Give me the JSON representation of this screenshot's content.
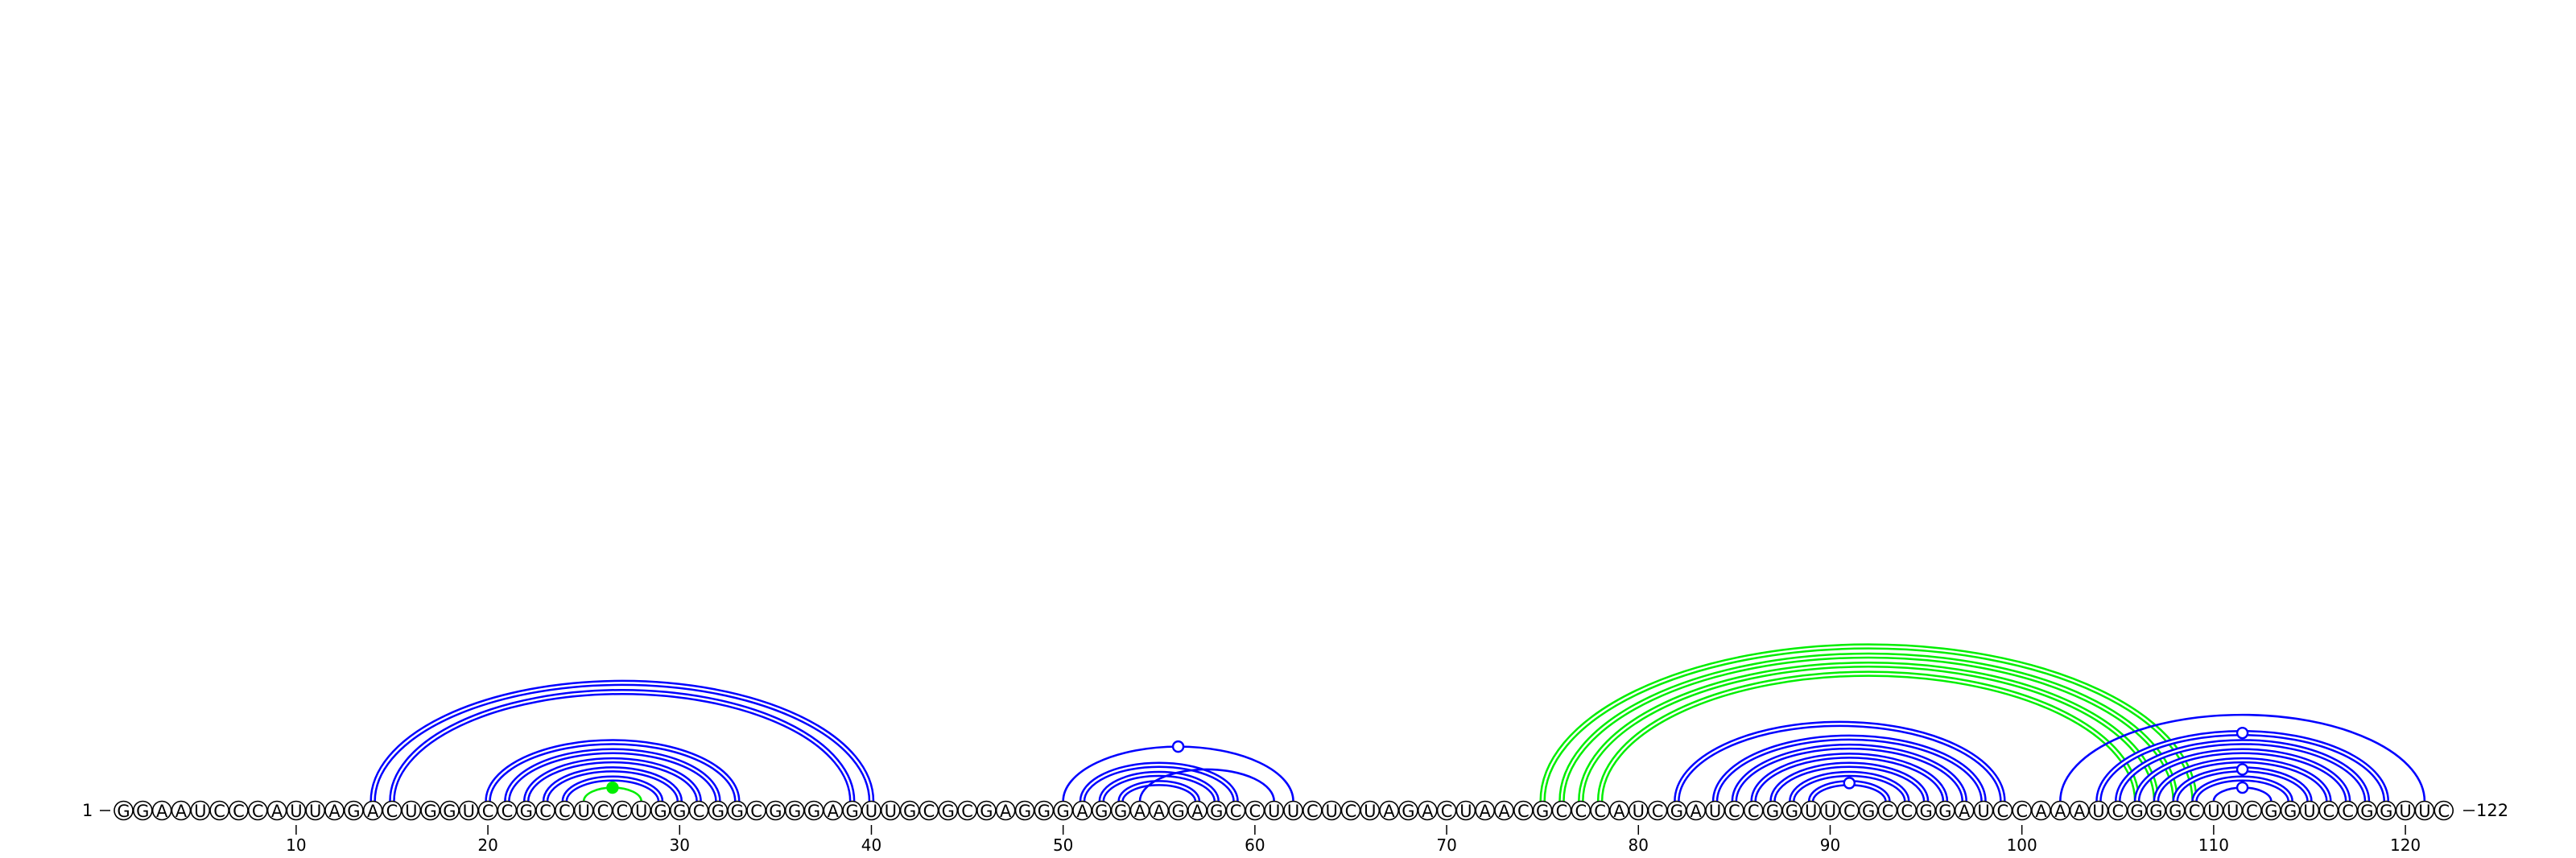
{
  "diagram": {
    "sequence": "GGAAUCCCAUUAGACUGGUCCGCCUCCUGGCGGCGGGAGUUGCGCGAGGGAGGAAGAGCCUUCUCUAGACUAACGCCCAUCGAUCCGGUUCGCCGGAUCCAAAUCGGGCUUCGGUCCGGUUC",
    "start_label": "1",
    "end_label": "122",
    "tick_positions": [
      10,
      20,
      30,
      40,
      50,
      60,
      70,
      80,
      90,
      100,
      110,
      120
    ],
    "colors": {
      "standard_pair": "#0000ff",
      "highlight_pair": "#00ee00",
      "nucleotide_outline": "#000000"
    },
    "pair_groups": [
      {
        "style": "double",
        "color": "#0000ff",
        "pairs": [
          [
            14,
            40
          ],
          [
            15,
            39
          ]
        ]
      },
      {
        "style": "double",
        "color": "#0000ff",
        "pairs": [
          [
            20,
            33
          ],
          [
            21,
            32
          ],
          [
            22,
            31
          ],
          [
            23,
            30
          ],
          [
            24,
            29
          ]
        ]
      },
      {
        "style": "single",
        "color": "#00ee00",
        "pairs": [
          [
            25,
            28
          ]
        ]
      },
      {
        "style": "double",
        "color": "#0000ff",
        "pairs": [
          [
            51,
            59
          ],
          [
            52,
            58
          ],
          [
            53,
            57
          ]
        ]
      },
      {
        "style": "single",
        "color": "#0000ff",
        "pairs": [
          [
            50,
            62
          ],
          [
            54,
            61
          ]
        ]
      },
      {
        "style": "double",
        "color": "#0000ff",
        "pairs": [
          [
            82,
            99
          ],
          [
            84,
            98
          ],
          [
            85,
            97
          ],
          [
            86,
            96
          ],
          [
            87,
            95
          ],
          [
            88,
            94
          ],
          [
            89,
            93
          ]
        ]
      },
      {
        "style": "double",
        "color": "#00ee00",
        "pairs": [
          [
            75,
            109
          ],
          [
            76,
            108
          ],
          [
            77,
            107
          ],
          [
            78,
            106
          ]
        ]
      },
      {
        "style": "double",
        "color": "#0000ff",
        "pairs": [
          [
            104,
            119
          ],
          [
            105,
            118
          ],
          [
            106,
            117
          ],
          [
            107,
            116
          ],
          [
            108,
            115
          ],
          [
            109,
            114
          ]
        ]
      },
      {
        "style": "single",
        "color": "#0000ff",
        "pairs": [
          [
            102,
            121
          ],
          [
            110,
            113
          ]
        ]
      }
    ],
    "loop_markers": [
      {
        "position": 26.5,
        "color": "#00ee00",
        "filled": true,
        "over_pair": [
          25,
          28
        ]
      },
      {
        "position": 56,
        "color": "#0000ff",
        "filled": false,
        "over_pair": [
          50,
          62
        ]
      },
      {
        "position": 91,
        "color": "#0000ff",
        "filled": false,
        "over_pair": [
          89,
          93
        ]
      },
      {
        "position": 111.5,
        "color": "#0000ff",
        "filled": false,
        "over_pair": [
          110,
          113
        ]
      },
      {
        "position": 111.5,
        "color": "#0000ff",
        "filled": false,
        "over_pair": [
          108,
          115
        ]
      },
      {
        "position": 111.5,
        "color": "#0000ff",
        "filled": false,
        "over_pair": [
          104,
          119
        ]
      }
    ]
  }
}
